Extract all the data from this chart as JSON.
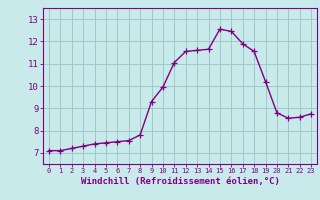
{
  "xlabel": "Windchill (Refroidissement éolien,°C)",
  "x": [
    0,
    1,
    2,
    3,
    4,
    5,
    6,
    7,
    8,
    9,
    10,
    11,
    12,
    13,
    14,
    15,
    16,
    17,
    18,
    19,
    20,
    21,
    22,
    23
  ],
  "y": [
    7.1,
    7.1,
    7.2,
    7.3,
    7.4,
    7.45,
    7.5,
    7.55,
    7.8,
    9.3,
    9.95,
    11.05,
    11.55,
    11.6,
    11.65,
    12.55,
    12.45,
    11.9,
    11.55,
    10.2,
    8.8,
    8.55,
    8.6,
    8.75
  ],
  "line_color": "#800080",
  "marker": "+",
  "bg_color": "#c8eaea",
  "grid_color": "#a0c8c8",
  "ylim": [
    6.5,
    13.5
  ],
  "xlim": [
    -0.5,
    23.5
  ],
  "yticks": [
    7,
    8,
    9,
    10,
    11,
    12,
    13
  ],
  "xticks": [
    0,
    1,
    2,
    3,
    4,
    5,
    6,
    7,
    8,
    9,
    10,
    11,
    12,
    13,
    14,
    15,
    16,
    17,
    18,
    19,
    20,
    21,
    22,
    23
  ],
  "xtick_fontsize": 5.0,
  "ytick_fontsize": 6.5,
  "xlabel_fontsize": 6.5,
  "xlabel_fontweight": "bold",
  "line_width": 1.0,
  "marker_size": 4
}
